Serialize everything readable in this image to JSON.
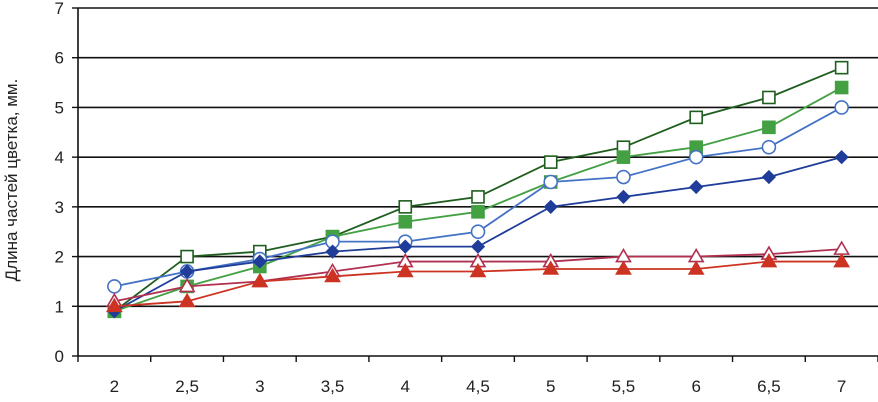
{
  "chart_data": {
    "type": "line",
    "title": "",
    "xlabel": "",
    "ylabel": "Длина частей цветка, мм.",
    "x": [
      2,
      2.5,
      3,
      3.5,
      4,
      4.5,
      5,
      5.5,
      6,
      6.5,
      7
    ],
    "x_tick_labels": [
      "2",
      "2,5",
      "3",
      "3,5",
      "4",
      "4,5",
      "5",
      "5,5",
      "6",
      "6,5",
      "7"
    ],
    "ylim": [
      0,
      7
    ],
    "y_ticks": [
      0,
      1,
      2,
      3,
      4,
      5,
      6,
      7
    ],
    "y_tick_labels": [
      "0",
      "1",
      "2",
      "3",
      "4",
      "5",
      "6",
      "7"
    ],
    "grid": "horizontal",
    "legend": "none",
    "series": [
      {
        "values": [
          0.9,
          2.0,
          2.1,
          2.4,
          3.0,
          3.2,
          3.9,
          4.2,
          4.8,
          5.2,
          5.8
        ],
        "color": "#1e5e1e",
        "marker": "square-open"
      },
      {
        "values": [
          0.9,
          1.4,
          1.8,
          2.4,
          2.7,
          2.9,
          3.5,
          4.0,
          4.2,
          4.6,
          5.4
        ],
        "color": "#43a043",
        "marker": "square-filled"
      },
      {
        "values": [
          1.4,
          1.7,
          1.95,
          2.3,
          2.3,
          2.5,
          3.5,
          3.6,
          4.0,
          4.2,
          5.0
        ],
        "color": "#4472c4",
        "marker": "circle-open"
      },
      {
        "values": [
          0.9,
          1.7,
          1.9,
          2.1,
          2.2,
          2.2,
          3.0,
          3.2,
          3.4,
          3.6,
          4.0
        ],
        "color": "#1f3d99",
        "marker": "diamond-filled"
      },
      {
        "values": [
          1.1,
          1.4,
          1.5,
          1.7,
          1.9,
          1.9,
          1.9,
          2.0,
          2.0,
          2.05,
          2.15
        ],
        "color": "#b03050",
        "marker": "triangle-open"
      },
      {
        "values": [
          1.0,
          1.1,
          1.5,
          1.6,
          1.7,
          1.7,
          1.75,
          1.75,
          1.75,
          1.9,
          1.9
        ],
        "color": "#cc3322",
        "marker": "triangle-filled"
      }
    ]
  }
}
